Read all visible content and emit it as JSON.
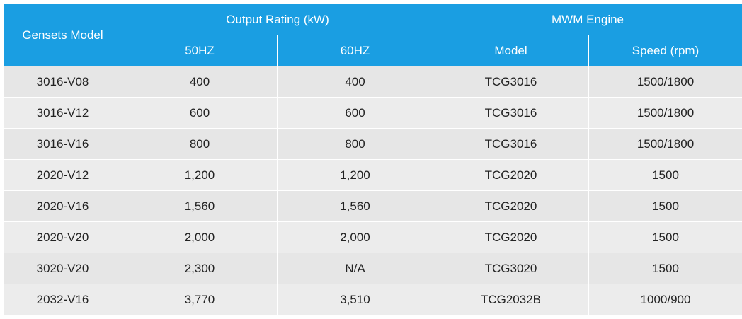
{
  "table": {
    "header": {
      "model": "Gensets Model",
      "output": "Output Rating (kW)",
      "engine": "MWM Engine",
      "sub": [
        "50HZ",
        "60HZ",
        "Model",
        "Speed (rpm)"
      ]
    },
    "rows": [
      [
        "3016-V08",
        "400",
        "400",
        "TCG3016",
        "1500/1800"
      ],
      [
        "3016-V12",
        "600",
        "600",
        "TCG3016",
        "1500/1800"
      ],
      [
        "3016-V16",
        "800",
        "800",
        "TCG3016",
        "1500/1800"
      ],
      [
        "2020-V12",
        "1,200",
        "1,200",
        "TCG2020",
        "1500"
      ],
      [
        "2020-V16",
        "1,560",
        "1,560",
        "TCG2020",
        "1500"
      ],
      [
        "2020-V20",
        "2,000",
        "2,000",
        "TCG2020",
        "1500"
      ],
      [
        "3020-V20",
        "2,300",
        "N/A",
        "TCG3020",
        "1500"
      ],
      [
        "2032-V16",
        "3,770",
        "3,510",
        "TCG2032B",
        "1000/900"
      ]
    ]
  }
}
